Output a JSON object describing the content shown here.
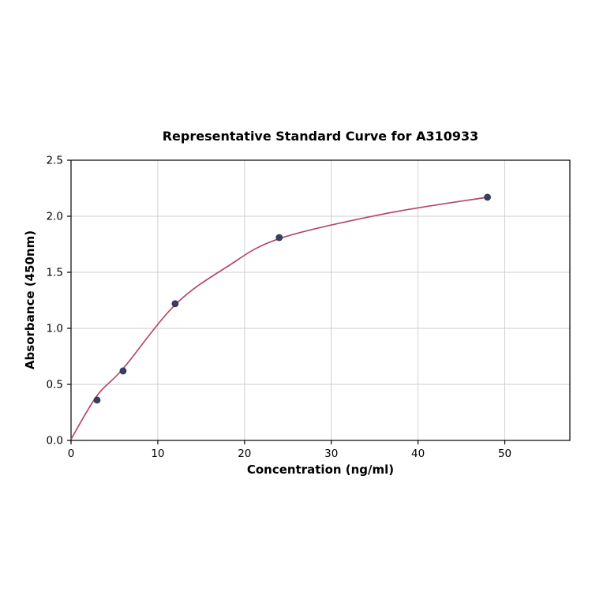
{
  "chart_data": {
    "type": "scatter",
    "title": "Representative Standard Curve for A310933",
    "xlabel": "Concentration (ng/ml)",
    "ylabel": "Absorbance (450nm)",
    "xlim": [
      0,
      57.5
    ],
    "ylim": [
      0,
      2.5
    ],
    "x_ticks": [
      0,
      10,
      20,
      30,
      40,
      50
    ],
    "y_ticks": [
      0.0,
      0.5,
      1.0,
      1.5,
      2.0,
      2.5
    ],
    "grid": true,
    "points": {
      "x": [
        3,
        6,
        12,
        24,
        48
      ],
      "y": [
        0.36,
        0.62,
        1.22,
        1.81,
        2.17
      ]
    },
    "curve": {
      "x": [
        0,
        3,
        6,
        12,
        18,
        24,
        36,
        48
      ],
      "y": [
        0.01,
        0.4,
        0.64,
        1.21,
        1.55,
        1.8,
        2.02,
        2.17
      ]
    },
    "colors": {
      "point": "#39405f",
      "curve": "#b5476b",
      "grid": "#cccccc",
      "axis": "#000000"
    }
  }
}
